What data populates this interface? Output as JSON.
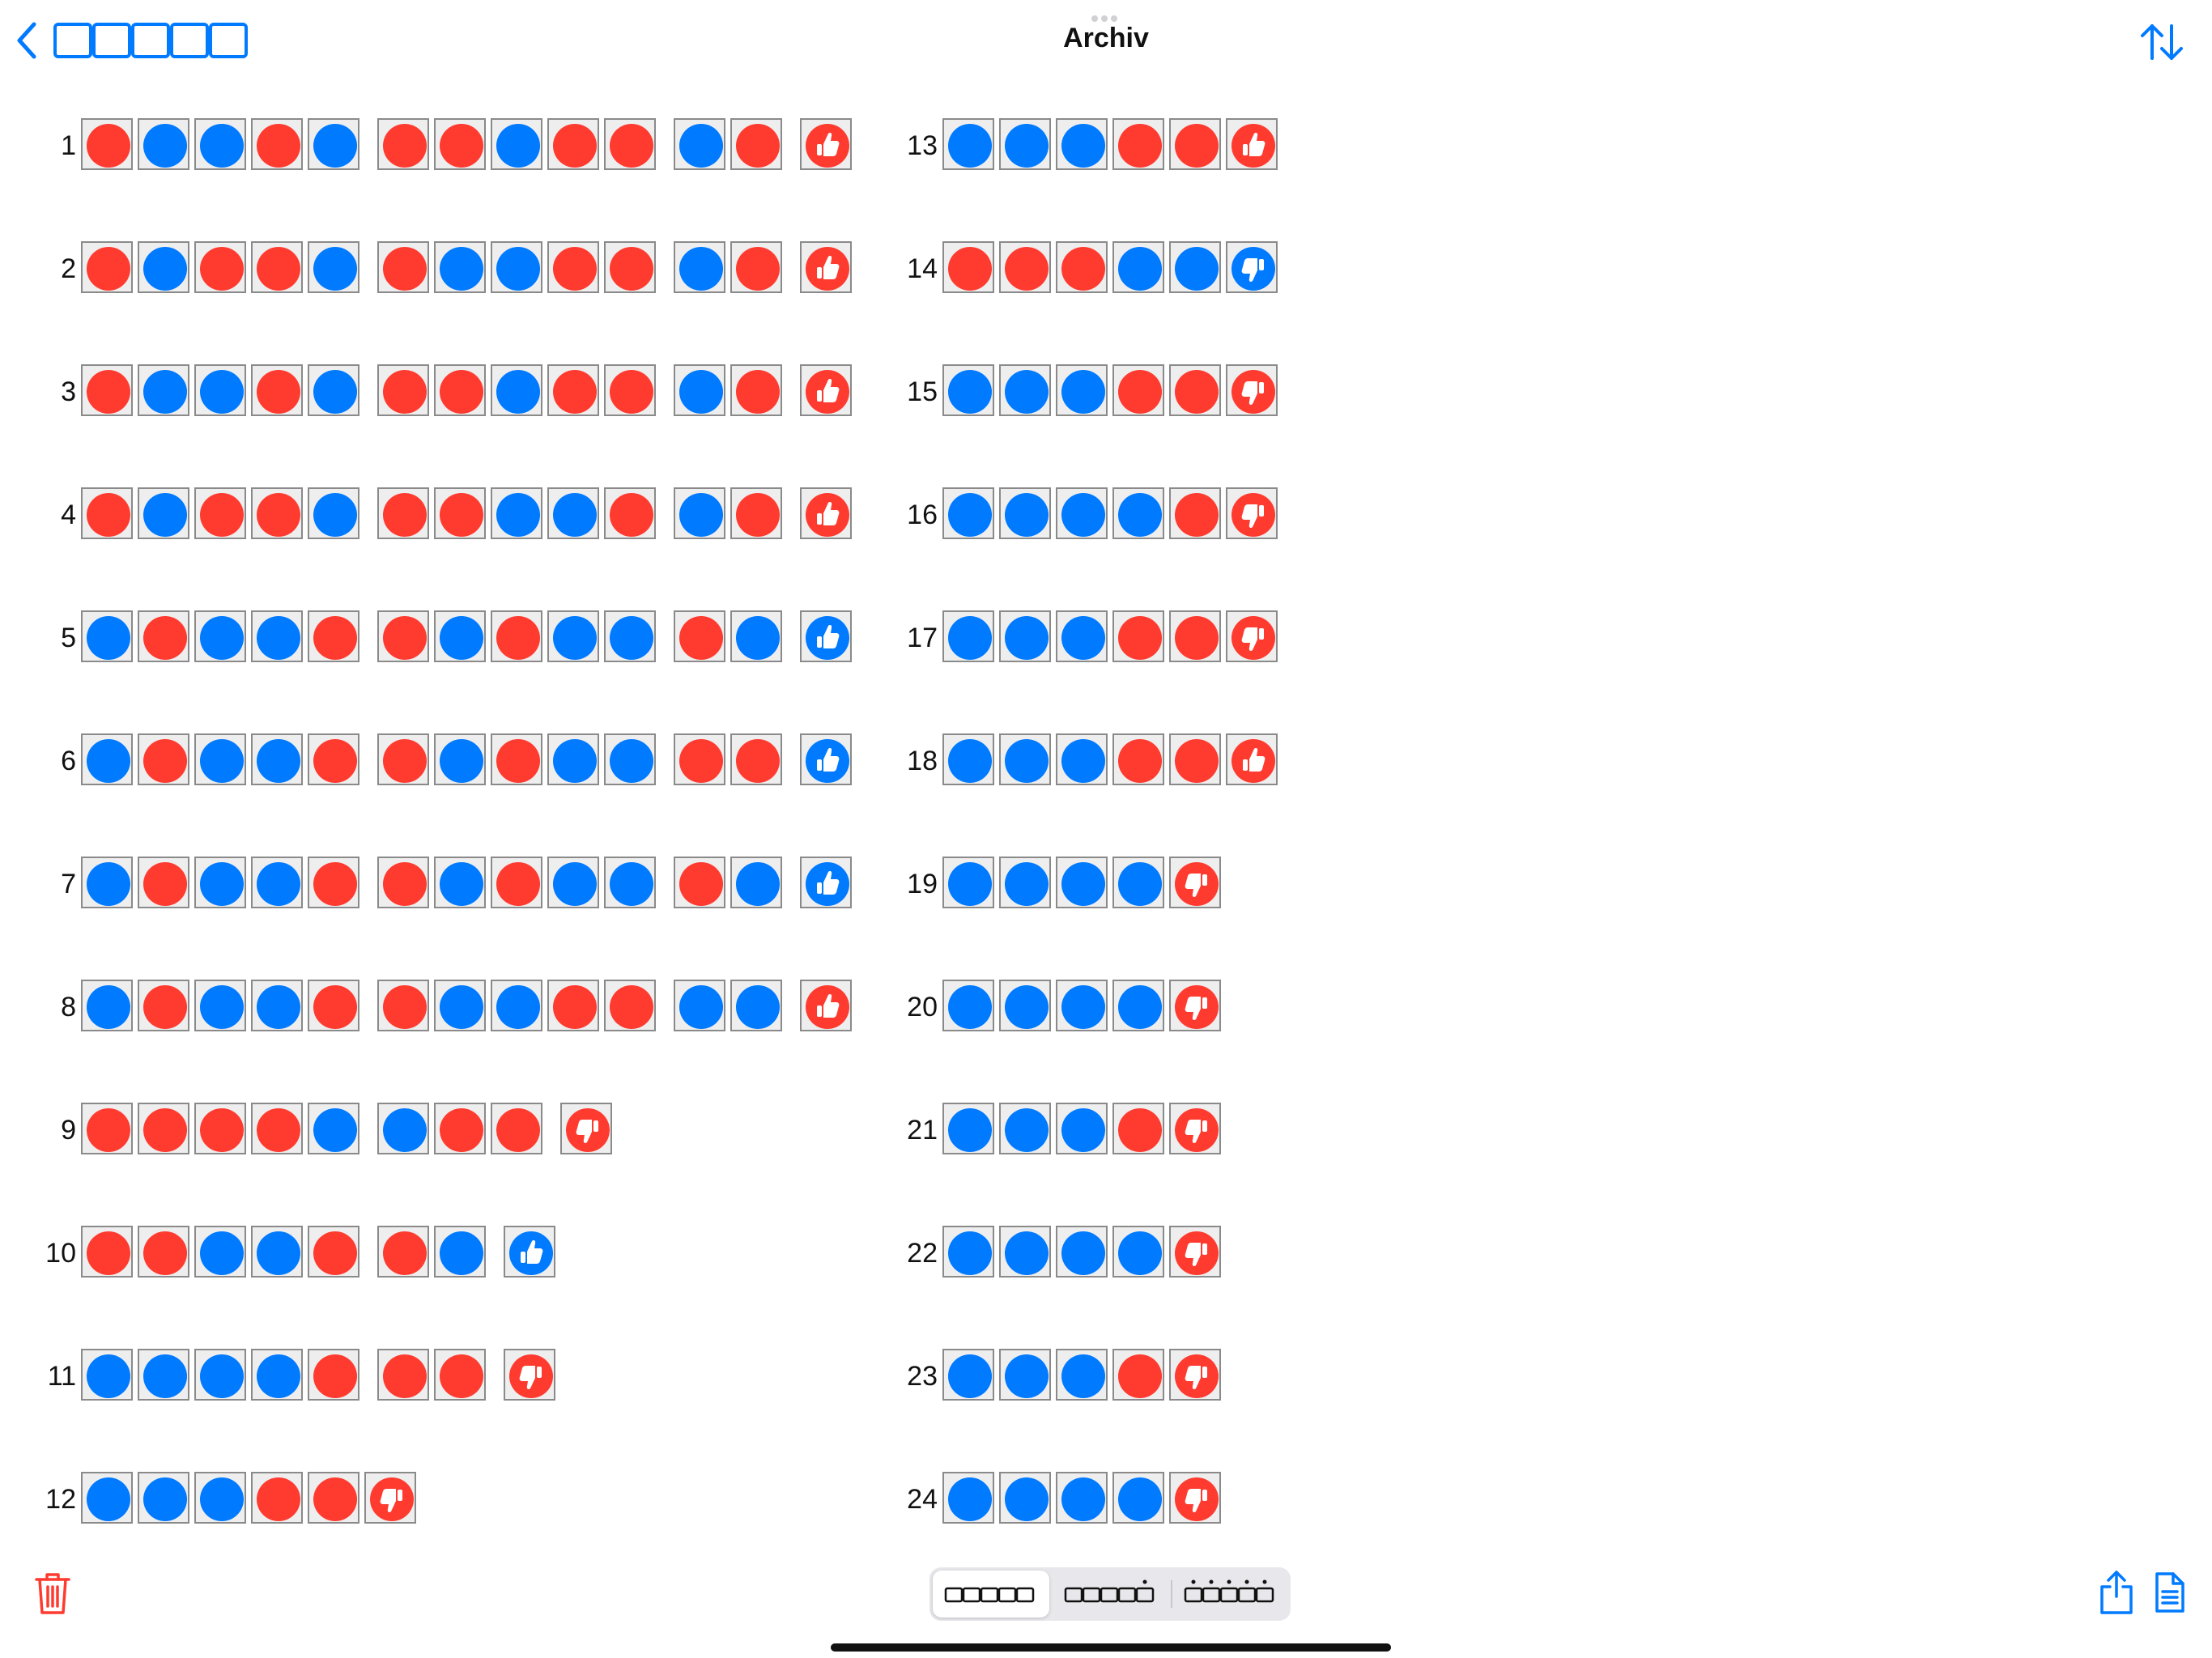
{
  "title": "Archiv",
  "colors": {
    "red": "#ff3b30",
    "blue": "#007aff",
    "cell_bg": "#eeeeee",
    "cell_border": "#8a8a8a",
    "accent": "#007aff",
    "destructive": "#ff3b30"
  },
  "icons": {
    "back": "chevron-left-icon",
    "back_squares": "squares-icon",
    "sort": "arrow-up-down-icon",
    "delete": "trash-icon",
    "share": "share-icon",
    "document": "document-icon",
    "positive_result": "thumbs-up-icon",
    "negative_result": "thumbs-down-icon"
  },
  "segmented_control": {
    "selected_index": 0,
    "options": [
      "squares-icon",
      "squares-one-dot-icon",
      "squares-five-dots-icon"
    ]
  },
  "rows": [
    {
      "num": "1",
      "groups": [
        "rbbrb",
        "rrbrr",
        "br"
      ],
      "result": {
        "type": "up",
        "color": "r"
      }
    },
    {
      "num": "2",
      "groups": [
        "rbrrb",
        "rbbrr",
        "br"
      ],
      "result": {
        "type": "up",
        "color": "r"
      }
    },
    {
      "num": "3",
      "groups": [
        "rbbrb",
        "rrbrr",
        "br"
      ],
      "result": {
        "type": "up",
        "color": "r"
      }
    },
    {
      "num": "4",
      "groups": [
        "rbrrb",
        "rrbbr",
        "br"
      ],
      "result": {
        "type": "up",
        "color": "r"
      }
    },
    {
      "num": "5",
      "groups": [
        "brbbr",
        "rbrbb",
        "rb"
      ],
      "result": {
        "type": "up",
        "color": "b"
      }
    },
    {
      "num": "6",
      "groups": [
        "brbbr",
        "rbrbb",
        "rr"
      ],
      "result": {
        "type": "up",
        "color": "b"
      }
    },
    {
      "num": "7",
      "groups": [
        "brbbr",
        "rbrbb",
        "rb"
      ],
      "result": {
        "type": "up",
        "color": "b"
      }
    },
    {
      "num": "8",
      "groups": [
        "brbbr",
        "rbbrr",
        "bb"
      ],
      "result": {
        "type": "up",
        "color": "r"
      }
    },
    {
      "num": "9",
      "groups": [
        "rrrrb",
        "brr"
      ],
      "result": {
        "type": "down",
        "color": "r"
      }
    },
    {
      "num": "10",
      "groups": [
        "rrbbr",
        "rb"
      ],
      "result": {
        "type": "up",
        "color": "b"
      }
    },
    {
      "num": "11",
      "groups": [
        "bbbbr",
        "rr"
      ],
      "result": {
        "type": "down",
        "color": "r"
      }
    },
    {
      "num": "12",
      "groups": [
        "bbbrr"
      ],
      "result": {
        "type": "down",
        "color": "r"
      }
    },
    {
      "num": "13",
      "groups": [
        "bbbrr"
      ],
      "result": {
        "type": "up",
        "color": "r"
      }
    },
    {
      "num": "14",
      "groups": [
        "rrrbb"
      ],
      "result": {
        "type": "down",
        "color": "b"
      }
    },
    {
      "num": "15",
      "groups": [
        "bbbrr"
      ],
      "result": {
        "type": "down",
        "color": "r"
      }
    },
    {
      "num": "16",
      "groups": [
        "bbbbr"
      ],
      "result": {
        "type": "down",
        "color": "r"
      }
    },
    {
      "num": "17",
      "groups": [
        "bbbrr"
      ],
      "result": {
        "type": "down",
        "color": "r"
      }
    },
    {
      "num": "18",
      "groups": [
        "bbbrr"
      ],
      "result": {
        "type": "up",
        "color": "r"
      }
    },
    {
      "num": "19",
      "groups": [
        "bbbb"
      ],
      "result": {
        "type": "down",
        "color": "r"
      }
    },
    {
      "num": "20",
      "groups": [
        "bbbb"
      ],
      "result": {
        "type": "down",
        "color": "r"
      }
    },
    {
      "num": "21",
      "groups": [
        "bbbr"
      ],
      "result": {
        "type": "down",
        "color": "r"
      }
    },
    {
      "num": "22",
      "groups": [
        "bbbb"
      ],
      "result": {
        "type": "down",
        "color": "r"
      }
    },
    {
      "num": "23",
      "groups": [
        "bbbr"
      ],
      "result": {
        "type": "down",
        "color": "r"
      }
    },
    {
      "num": "24",
      "groups": [
        "bbbb"
      ],
      "result": {
        "type": "down",
        "color": "r"
      }
    }
  ]
}
